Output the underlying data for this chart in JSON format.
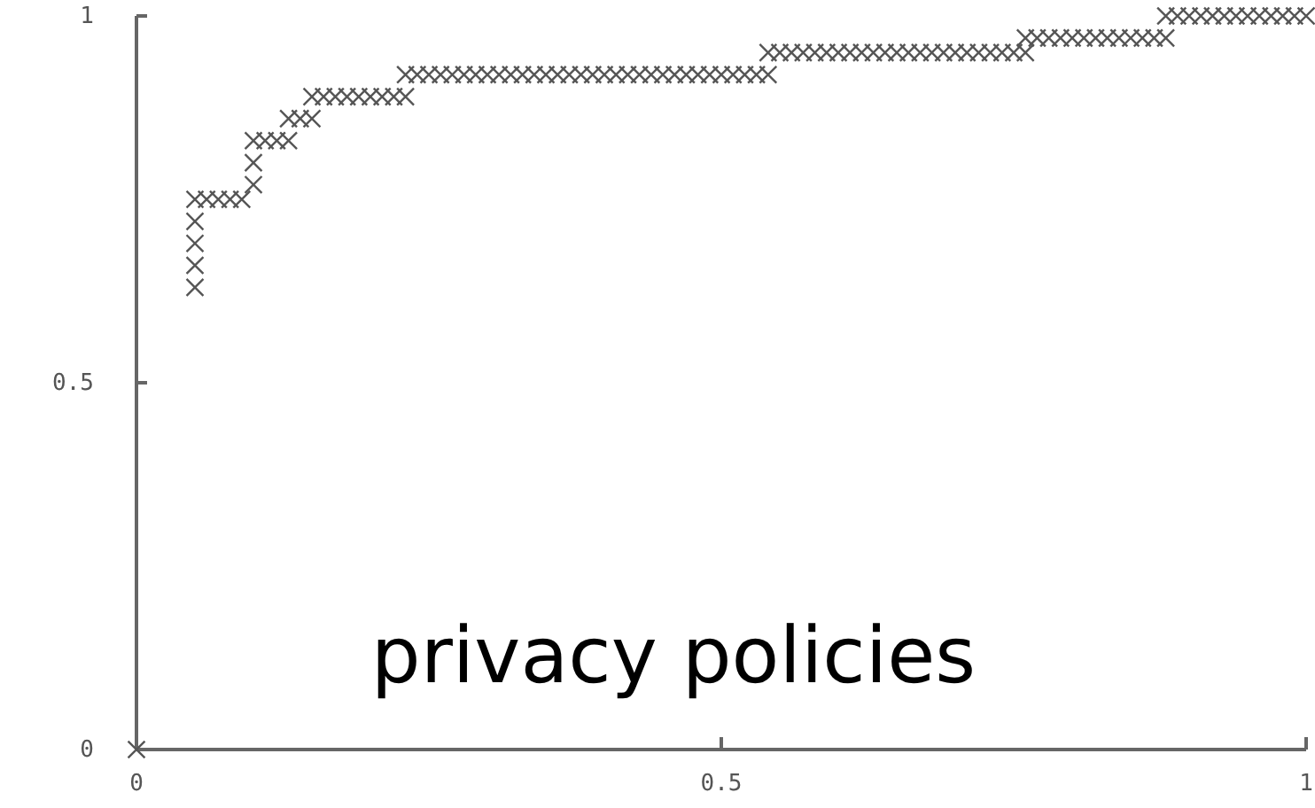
{
  "chart_data": {
    "type": "scatter",
    "marker": "cross",
    "grid": false,
    "annotations": [
      "privacy policies"
    ],
    "xlim": [
      0,
      1
    ],
    "ylim": [
      0,
      1
    ],
    "xticks": [
      0,
      0.5,
      1
    ],
    "yticks": [
      0,
      0.5,
      1
    ],
    "series": [
      {
        "color": "#555555",
        "x": [
          0,
          0.05,
          0.05,
          0.05,
          0.05,
          0.05,
          0.06,
          0.07,
          0.08,
          0.09,
          0.1,
          0.1,
          0.1,
          0.11,
          0.12,
          0.13,
          0.13,
          0.14,
          0.15,
          0.15,
          0.16,
          0.17,
          0.18,
          0.19,
          0.2,
          0.21,
          0.22,
          0.23,
          0.23,
          0.24,
          0.25,
          0.26,
          0.27,
          0.28,
          0.29,
          0.3,
          0.31,
          0.32,
          0.33,
          0.34,
          0.35,
          0.36,
          0.37,
          0.38,
          0.39,
          0.4,
          0.41,
          0.42,
          0.43,
          0.44,
          0.45,
          0.46,
          0.47,
          0.48,
          0.49,
          0.5,
          0.51,
          0.52,
          0.53,
          0.54,
          0.54,
          0.55,
          0.56,
          0.57,
          0.58,
          0.59,
          0.6,
          0.61,
          0.62,
          0.63,
          0.64,
          0.65,
          0.66,
          0.67,
          0.68,
          0.69,
          0.7,
          0.71,
          0.72,
          0.73,
          0.74,
          0.75,
          0.76,
          0.76,
          0.77,
          0.78,
          0.79,
          0.8,
          0.81,
          0.82,
          0.83,
          0.84,
          0.85,
          0.86,
          0.87,
          0.88,
          0.88,
          0.89,
          0.9,
          0.91,
          0.92,
          0.93,
          0.94,
          0.95,
          0.96,
          0.97,
          0.98,
          0.99,
          1
        ],
        "values": [
          0,
          0.63,
          0.66,
          0.69,
          0.72,
          0.75,
          0.75,
          0.75,
          0.75,
          0.75,
          0.77,
          0.8,
          0.83,
          0.83,
          0.83,
          0.83,
          0.86,
          0.86,
          0.86,
          0.89,
          0.89,
          0.89,
          0.89,
          0.89,
          0.89,
          0.89,
          0.89,
          0.89,
          0.92,
          0.92,
          0.92,
          0.92,
          0.92,
          0.92,
          0.92,
          0.92,
          0.92,
          0.92,
          0.92,
          0.92,
          0.92,
          0.92,
          0.92,
          0.92,
          0.92,
          0.92,
          0.92,
          0.92,
          0.92,
          0.92,
          0.92,
          0.92,
          0.92,
          0.92,
          0.92,
          0.92,
          0.92,
          0.92,
          0.92,
          0.92,
          0.95,
          0.95,
          0.95,
          0.95,
          0.95,
          0.95,
          0.95,
          0.95,
          0.95,
          0.95,
          0.95,
          0.95,
          0.95,
          0.95,
          0.95,
          0.95,
          0.95,
          0.95,
          0.95,
          0.95,
          0.95,
          0.95,
          0.95,
          0.97,
          0.97,
          0.97,
          0.97,
          0.97,
          0.97,
          0.97,
          0.97,
          0.97,
          0.97,
          0.97,
          0.97,
          0.97,
          1,
          1,
          1,
          1,
          1,
          1,
          1,
          1,
          1,
          1,
          1,
          1,
          1
        ]
      }
    ]
  }
}
